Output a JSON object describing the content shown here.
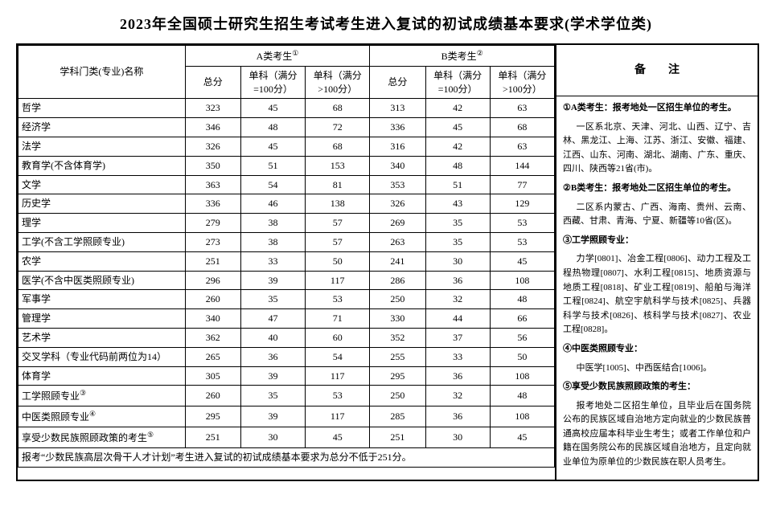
{
  "title": "2023年全国硕士研究生招生考试考生进入复试的初试成绩基本要求(学术学位类)",
  "header": {
    "name": "学科门类(专业)名称",
    "groupA": "A类考生",
    "groupB": "B类考生",
    "total": "总分",
    "sub100": "单科（满分=100分）",
    "subGt100": "单科（满分>100分）",
    "notesHead": "备注"
  },
  "rows": [
    {
      "name": "哲学",
      "a": [
        323,
        45,
        68
      ],
      "b": [
        313,
        42,
        63
      ]
    },
    {
      "name": "经济学",
      "a": [
        346,
        48,
        72
      ],
      "b": [
        336,
        45,
        68
      ]
    },
    {
      "name": "法学",
      "a": [
        326,
        45,
        68
      ],
      "b": [
        316,
        42,
        63
      ]
    },
    {
      "name": "教育学(不含体育学)",
      "a": [
        350,
        51,
        153
      ],
      "b": [
        340,
        48,
        144
      ]
    },
    {
      "name": "文学",
      "a": [
        363,
        54,
        81
      ],
      "b": [
        353,
        51,
        77
      ]
    },
    {
      "name": "历史学",
      "a": [
        336,
        46,
        138
      ],
      "b": [
        326,
        43,
        129
      ]
    },
    {
      "name": "理学",
      "a": [
        279,
        38,
        57
      ],
      "b": [
        269,
        35,
        53
      ]
    },
    {
      "name": "工学(不含工学照顾专业)",
      "a": [
        273,
        38,
        57
      ],
      "b": [
        263,
        35,
        53
      ]
    },
    {
      "name": "农学",
      "a": [
        251,
        33,
        50
      ],
      "b": [
        241,
        30,
        45
      ]
    },
    {
      "name": "医学(不含中医类照顾专业)",
      "a": [
        296,
        39,
        117
      ],
      "b": [
        286,
        36,
        108
      ]
    },
    {
      "name": "军事学",
      "a": [
        260,
        35,
        53
      ],
      "b": [
        250,
        32,
        48
      ]
    },
    {
      "name": "管理学",
      "a": [
        340,
        47,
        71
      ],
      "b": [
        330,
        44,
        66
      ]
    },
    {
      "name": "艺术学",
      "a": [
        362,
        40,
        60
      ],
      "b": [
        352,
        37,
        56
      ]
    },
    {
      "name": "交叉学科（专业代码前两位为14）",
      "a": [
        265,
        36,
        54
      ],
      "b": [
        255,
        33,
        50
      ]
    },
    {
      "name": "体育学",
      "a": [
        305,
        39,
        117
      ],
      "b": [
        295,
        36,
        108
      ]
    },
    {
      "name": "工学照顾专业",
      "sup": "③",
      "a": [
        260,
        35,
        53
      ],
      "b": [
        250,
        32,
        48
      ]
    },
    {
      "name": "中医类照顾专业",
      "sup": "④",
      "a": [
        295,
        39,
        117
      ],
      "b": [
        285,
        36,
        108
      ]
    },
    {
      "name": "享受少数民族照顾政策的考生",
      "sup": "⑤",
      "a": [
        251,
        30,
        45
      ],
      "b": [
        251,
        30,
        45
      ]
    }
  ],
  "footer": "报考“少数民族高层次骨干人才计划”考生进入复试的初试成绩基本要求为总分不低于251分。",
  "notes": [
    {
      "bold": true,
      "text": "①A类考生：报考地处一区招生单位的考生。"
    },
    {
      "bold": false,
      "indent": true,
      "text": "一区系北京、天津、河北、山西、辽宁、吉林、黑龙江、上海、江苏、浙江、安徽、福建、江西、山东、河南、湖北、湖南、广东、重庆、四川、陕西等21省(市)。"
    },
    {
      "bold": true,
      "text": "②B类考生：报考地处二区招生单位的考生。"
    },
    {
      "bold": false,
      "indent": true,
      "text": "二区系内蒙古、广西、海南、贵州、云南、西藏、甘肃、青海、宁夏、新疆等10省(区)。"
    },
    {
      "bold": true,
      "text": "③工学照顾专业："
    },
    {
      "bold": false,
      "indent": true,
      "text": "力学[0801]、冶金工程[0806]、动力工程及工程热物理[0807]、水利工程[0815]、地质资源与地质工程[0818]、矿业工程[0819]、船舶与海洋工程[0824]、航空宇航科学与技术[0825]、兵器科学与技术[0826]、核科学与技术[0827]、农业工程[0828]。"
    },
    {
      "bold": true,
      "text": "④中医类照顾专业："
    },
    {
      "bold": false,
      "indent": true,
      "text": "中医学[1005]、中西医结合[1006]。"
    },
    {
      "bold": true,
      "text": "⑤享受少数民族照顾政策的考生："
    },
    {
      "bold": false,
      "indent": true,
      "text": "报考地处二区招生单位，且毕业后在国务院公布的民族区域自治地方定向就业的少数民族普通高校应届本科毕业生考生；或者工作单位和户籍在国务院公布的民族区域自治地方，且定向就业单位为原单位的少数民族在职人员考生。"
    }
  ],
  "sup": {
    "one": "①",
    "two": "②"
  }
}
